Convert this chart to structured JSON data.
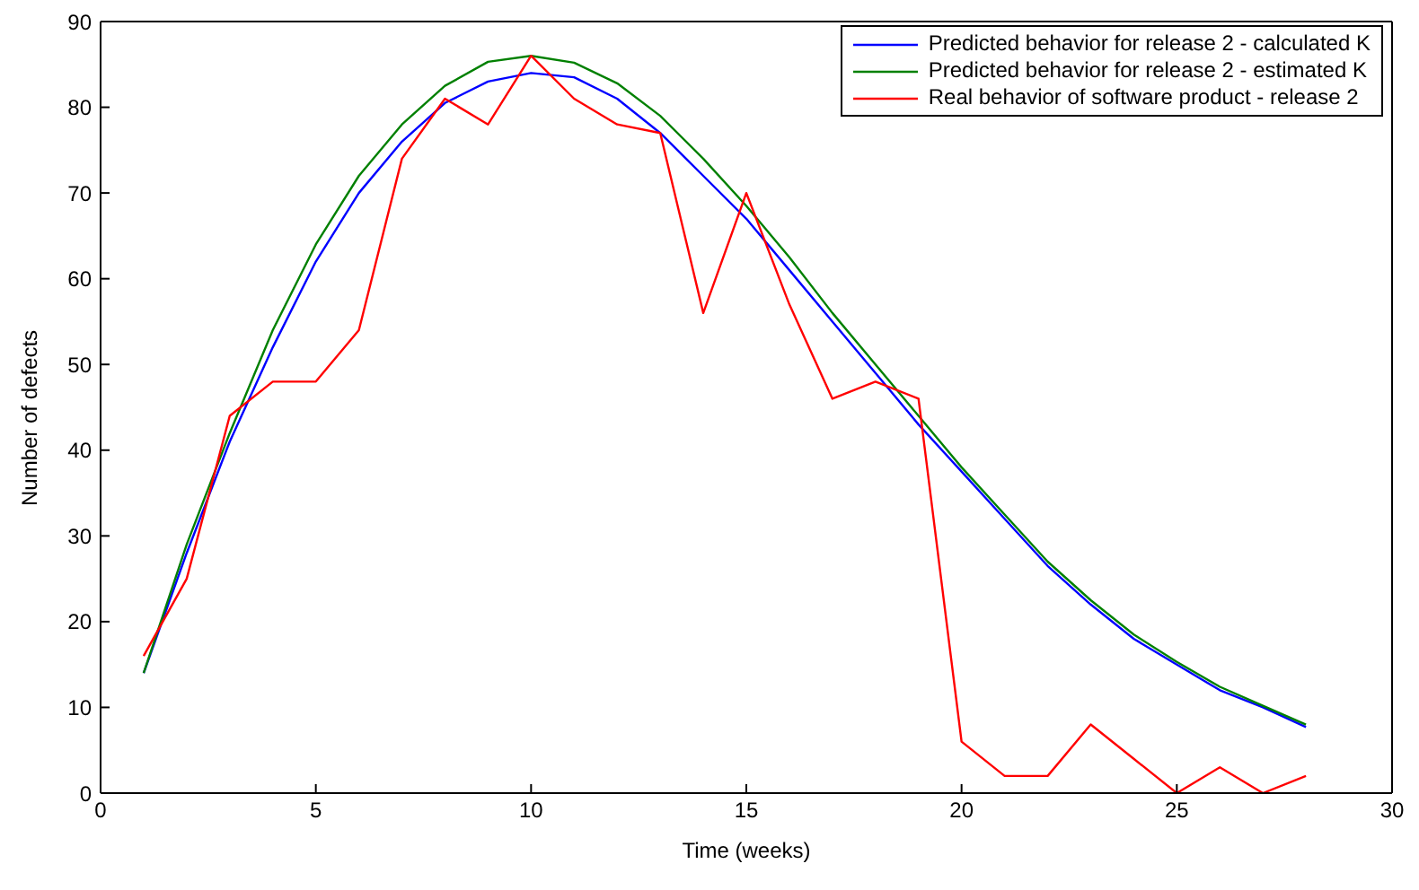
{
  "chart_data": {
    "type": "line",
    "xlabel": "Time (weeks)",
    "ylabel": "Number of defects",
    "x": [
      1,
      2,
      3,
      4,
      5,
      6,
      7,
      8,
      9,
      10,
      11,
      12,
      13,
      14,
      15,
      16,
      17,
      18,
      19,
      20,
      21,
      22,
      23,
      24,
      25,
      26,
      27,
      28
    ],
    "xlim": [
      0,
      30
    ],
    "xticks": [
      0,
      5,
      10,
      15,
      20,
      25,
      30
    ],
    "ylim": [
      0,
      90
    ],
    "yticks": [
      0,
      10,
      20,
      30,
      40,
      50,
      60,
      70,
      80,
      90
    ],
    "grid": false,
    "legend": "top right",
    "marker": "none",
    "line_style": "solid",
    "series": [
      {
        "name": "Predicted behavior for release 2 - calculated K",
        "color": "#0000ff",
        "values": [
          14,
          28,
          41,
          52,
          62,
          70,
          76,
          80.5,
          83,
          84,
          83.5,
          81,
          77,
          72,
          67,
          61,
          55,
          49,
          43,
          37.5,
          32,
          26.5,
          22,
          18,
          15,
          12,
          10,
          7.7
        ]
      },
      {
        "name": "Predicted behavior for release 2 - estimated K",
        "color": "#008000",
        "values": [
          14,
          29,
          42,
          54,
          64,
          72,
          78,
          82.5,
          85.3,
          86,
          85.2,
          82.8,
          79,
          74,
          68.5,
          62.5,
          56,
          50,
          44,
          38,
          32.5,
          27,
          22.5,
          18.5,
          15.3,
          12.4,
          10.2,
          8
        ]
      },
      {
        "name": "Real behavior of software product - release 2",
        "color": "#ff0000",
        "values": [
          16,
          25,
          44,
          48,
          48,
          54,
          74,
          81,
          78,
          86,
          81,
          78,
          77,
          56,
          70,
          57,
          46,
          48,
          46,
          6,
          2,
          2,
          8,
          4,
          0,
          3,
          0,
          2
        ]
      }
    ]
  }
}
